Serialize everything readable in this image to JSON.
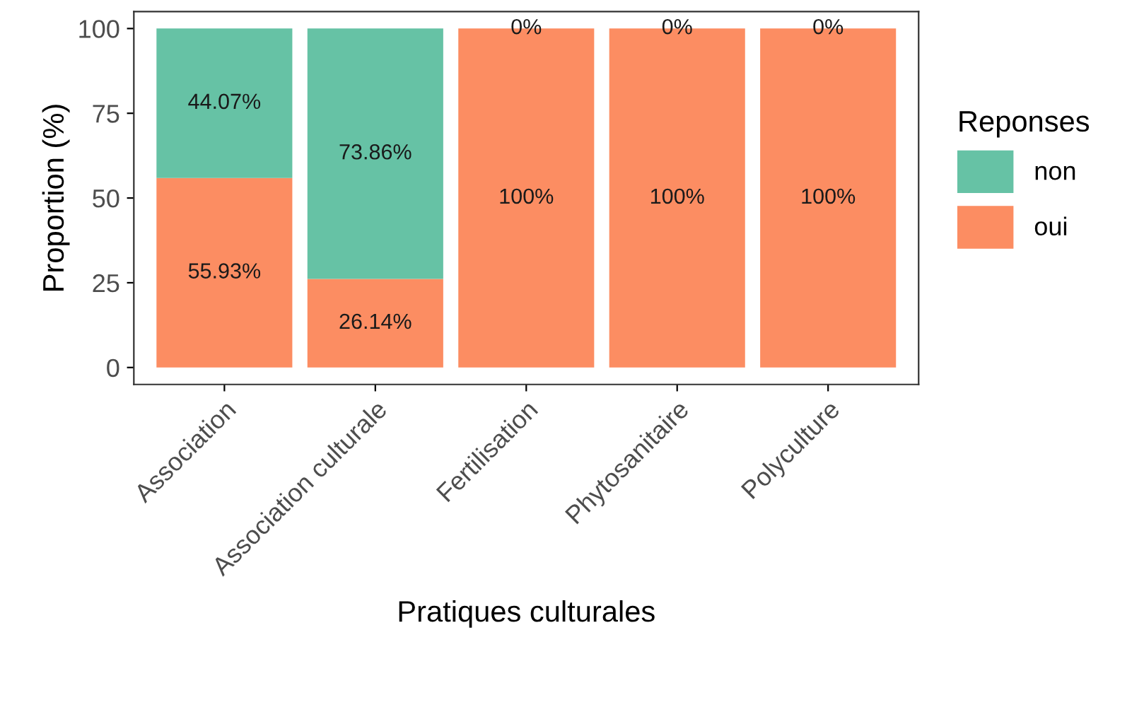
{
  "chart_data": {
    "type": "bar",
    "stacked": true,
    "xlabel": "Pratiques culturales",
    "ylabel": "Proportion (%)",
    "legend_title": "Reponses",
    "legend": "right",
    "grid": false,
    "categories": [
      "Association",
      "Association culturale",
      "Fertilisation",
      "Phytosanitaire",
      "Polyculture"
    ],
    "series": [
      {
        "name": "oui",
        "color": "#fc8d62",
        "values": [
          55.93,
          26.14,
          100,
          100,
          100
        ],
        "value_labels": [
          "55.93%",
          "26.14%",
          "100%",
          "100%",
          "100%"
        ]
      },
      {
        "name": "non",
        "color": "#66c2a5",
        "values": [
          44.07,
          73.86,
          0,
          0,
          0
        ],
        "value_labels": [
          "44.07%",
          "73.86%",
          "0%",
          "0%",
          "0%"
        ]
      }
    ],
    "ylim": [
      -5,
      105
    ],
    "yticks": [
      0,
      25,
      50,
      75,
      100
    ]
  }
}
